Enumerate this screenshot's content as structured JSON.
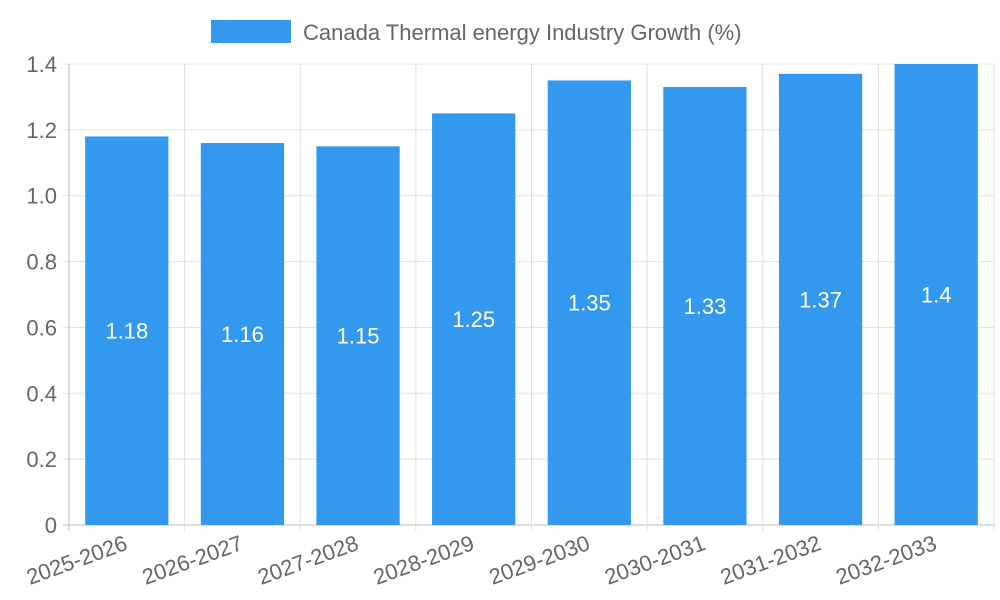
{
  "chart_data": {
    "type": "bar",
    "legend": {
      "position": "top",
      "label": "Canada Thermal energy Industry Growth (%)",
      "color": "#3399ee"
    },
    "categories": [
      "2025-2026",
      "2026-2027",
      "2027-2028",
      "2028-2029",
      "2029-2030",
      "2030-2031",
      "2031-2032",
      "2032-2033"
    ],
    "series": [
      {
        "name": "Canada Thermal energy Industry Growth (%)",
        "values": [
          1.18,
          1.16,
          1.15,
          1.25,
          1.35,
          1.33,
          1.37,
          1.4
        ],
        "color": "#3399ee"
      }
    ],
    "data_labels": [
      "1.18",
      "1.16",
      "1.15",
      "1.25",
      "1.35",
      "1.33",
      "1.37",
      "1.4"
    ],
    "ylim": [
      0,
      1.4
    ],
    "yticks": [
      "0",
      "0.2",
      "0.4",
      "0.6",
      "0.8",
      "1.0",
      "1.2",
      "1.4"
    ],
    "grid": true,
    "colors": {
      "bar": "#3399ee",
      "grid": "#e0e0e0",
      "axis": "#bdbdbd",
      "tick_text": "#666666",
      "data_label_text": "#ffffff"
    }
  }
}
